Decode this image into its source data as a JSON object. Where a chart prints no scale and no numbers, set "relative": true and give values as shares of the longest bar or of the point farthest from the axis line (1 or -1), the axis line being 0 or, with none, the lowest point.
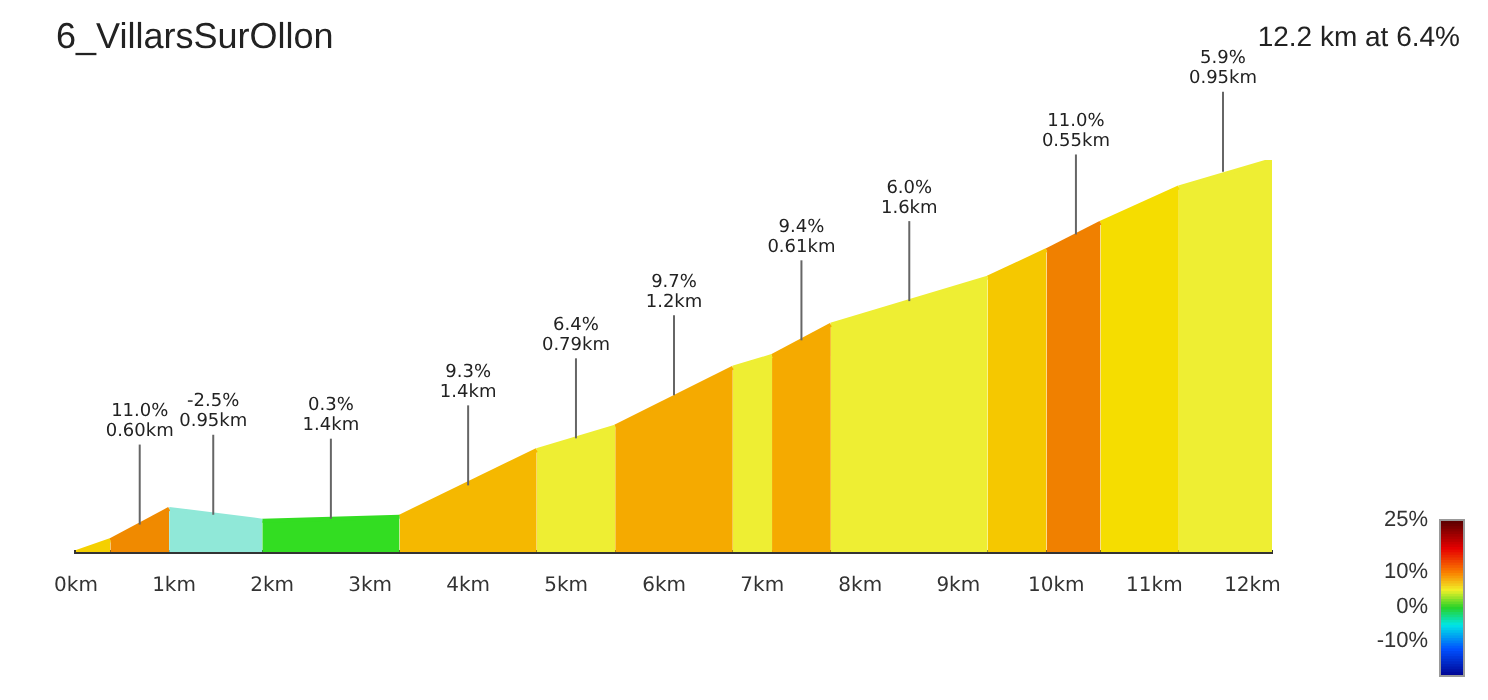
{
  "chart_data": {
    "type": "area",
    "title": "6_VillarsSurOllon",
    "subtitle": "12.2 km at 6.4%",
    "relative": true,
    "series": [
      {
        "color": "#f5d000",
        "x": [
          0,
          0.35
        ],
        "values": [
          0,
          0.03
        ]
      },
      {
        "color": "#f08a00",
        "x": [
          0.35,
          0.95
        ],
        "values": [
          0.03,
          0.11
        ]
      },
      {
        "color": "#90e8d8",
        "x": [
          0.95,
          1.9
        ],
        "values": [
          0.11,
          0.08
        ]
      },
      {
        "color": "#33dd22",
        "x": [
          1.9,
          3.3
        ],
        "values": [
          0.08,
          0.09
        ]
      },
      {
        "color": "#f5b800",
        "x": [
          3.3,
          4.7
        ],
        "values": [
          0.09,
          0.26
        ]
      },
      {
        "color": "#eeee33",
        "x": [
          4.7,
          5.5
        ],
        "values": [
          0.26,
          0.32
        ]
      },
      {
        "color": "#f5aa00",
        "x": [
          5.5,
          6.7
        ],
        "values": [
          0.32,
          0.47
        ]
      },
      {
        "color": "#eeee33",
        "x": [
          6.7,
          7.1
        ],
        "values": [
          0.47,
          0.5
        ]
      },
      {
        "color": "#f5aa00",
        "x": [
          7.1,
          7.7
        ],
        "values": [
          0.5,
          0.58
        ]
      },
      {
        "color": "#eeee33",
        "x": [
          7.7,
          9.3
        ],
        "values": [
          0.58,
          0.7
        ]
      },
      {
        "color": "#f5c800",
        "x": [
          9.3,
          9.9
        ],
        "values": [
          0.7,
          0.77
        ]
      },
      {
        "color": "#f08000",
        "x": [
          9.9,
          10.45
        ],
        "values": [
          0.77,
          0.84
        ]
      },
      {
        "color": "#f5dd00",
        "x": [
          10.45,
          11.25
        ],
        "values": [
          0.84,
          0.93
        ]
      },
      {
        "color": "#eeee33",
        "x": [
          11.25,
          12.2
        ],
        "values": [
          0.93,
          1.0
        ]
      }
    ],
    "xlim": [
      0,
      12.2
    ],
    "xticks": [
      {
        "value": 0,
        "label": "0km"
      },
      {
        "value": 1,
        "label": "1km"
      },
      {
        "value": 2,
        "label": "2km"
      },
      {
        "value": 3,
        "label": "3km"
      },
      {
        "value": 4,
        "label": "4km"
      },
      {
        "value": 5,
        "label": "5km"
      },
      {
        "value": 6,
        "label": "6km"
      },
      {
        "value": 7,
        "label": "7km"
      },
      {
        "value": 8,
        "label": "8km"
      },
      {
        "value": 9,
        "label": "9km"
      },
      {
        "value": 10,
        "label": "10km"
      },
      {
        "value": 11,
        "label": "11km"
      },
      {
        "value": 12,
        "label": "12km"
      }
    ],
    "clim": [
      -20,
      25
    ],
    "cticks": [
      {
        "value": 25,
        "label": "25%"
      },
      {
        "value": 10,
        "label": "10%"
      },
      {
        "value": 0,
        "label": "0%"
      },
      {
        "value": -10,
        "label": "-10%"
      }
    ],
    "annotations": [
      {
        "text": "11.0%\n0.60km",
        "x": 0.65,
        "y": 0.07
      },
      {
        "text": "-2.5%\n0.95km",
        "x": 1.4,
        "y": 0.095
      },
      {
        "text": "0.3%\n1.4km",
        "x": 2.6,
        "y": 0.085
      },
      {
        "text": "9.3%\n1.4km",
        "x": 4.0,
        "y": 0.17
      },
      {
        "text": "6.4%\n0.79km",
        "x": 5.1,
        "y": 0.29
      },
      {
        "text": "9.7%\n1.2km",
        "x": 6.1,
        "y": 0.4
      },
      {
        "text": "9.4%\n0.61km",
        "x": 7.4,
        "y": 0.54
      },
      {
        "text": "6.0%\n1.6km",
        "x": 8.5,
        "y": 0.64
      },
      {
        "text": "11.0%\n0.55km",
        "x": 10.2,
        "y": 0.81
      },
      {
        "text": "5.9%\n0.95km",
        "x": 11.7,
        "y": 0.97
      }
    ]
  }
}
